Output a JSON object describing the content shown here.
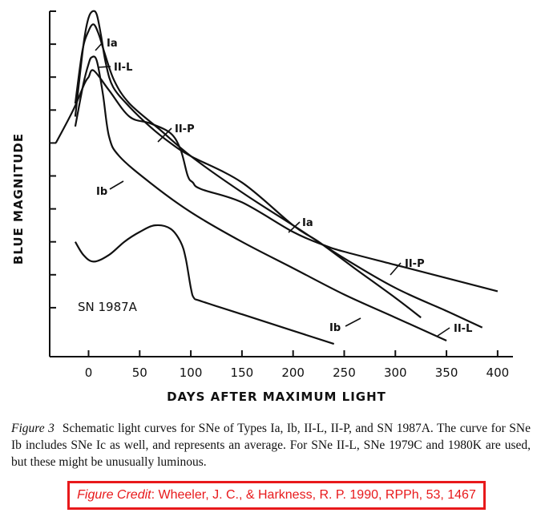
{
  "chart_data": {
    "type": "line",
    "xlabel": "DAYS AFTER MAXIMUM LIGHT",
    "ylabel": "BLUE MAGNITUDE",
    "xlim": [
      -38,
      415
    ],
    "ylim": [
      0,
      10
    ],
    "x_ticks": [
      0,
      50,
      100,
      150,
      200,
      250,
      300,
      350,
      400
    ],
    "x_tick_labels": [
      "0",
      "50",
      "100",
      "150",
      "200",
      "250",
      "300",
      "350",
      "400"
    ],
    "y_ticks": [
      1,
      2,
      3,
      4,
      5,
      6,
      7,
      8,
      9,
      10
    ],
    "y_tick_labels": [],
    "grid": false,
    "annotation": "SN 1987A",
    "series": [
      {
        "name": "Ia",
        "points": [
          [
            -13,
            6.8
          ],
          [
            -8,
            8.2
          ],
          [
            -4,
            9.2
          ],
          [
            0,
            9.8
          ],
          [
            4,
            10.0
          ],
          [
            8,
            9.9
          ],
          [
            12,
            9.3
          ],
          [
            17,
            8.4
          ],
          [
            24,
            7.7
          ],
          [
            40,
            7.1
          ],
          [
            60,
            6.5
          ],
          [
            80,
            6.0
          ],
          [
            100,
            5.6
          ],
          [
            150,
            4.8
          ],
          [
            200,
            3.5
          ],
          [
            225,
            3.0
          ],
          [
            260,
            2.2
          ],
          [
            300,
            1.3
          ],
          [
            325,
            0.7
          ]
        ]
      },
      {
        "name": "II-L",
        "points": [
          [
            -13,
            7.2
          ],
          [
            -6,
            8.8
          ],
          [
            0,
            9.4
          ],
          [
            5,
            9.6
          ],
          [
            10,
            9.3
          ],
          [
            15,
            8.8
          ],
          [
            25,
            7.9
          ],
          [
            40,
            7.2
          ],
          [
            70,
            6.4
          ],
          [
            100,
            5.6
          ],
          [
            150,
            4.5
          ],
          [
            200,
            3.5
          ],
          [
            250,
            2.5
          ],
          [
            300,
            1.6
          ],
          [
            350,
            0.9
          ],
          [
            385,
            0.4
          ]
        ]
      },
      {
        "name": "II-P",
        "points": [
          [
            -32,
            6.0
          ],
          [
            -15,
            7.0
          ],
          [
            -4,
            7.8
          ],
          [
            0,
            8.0
          ],
          [
            5,
            8.2
          ],
          [
            20,
            7.6
          ],
          [
            40,
            6.8
          ],
          [
            60,
            6.6
          ],
          [
            80,
            6.3
          ],
          [
            90,
            5.8
          ],
          [
            97,
            5.0
          ],
          [
            102,
            4.8
          ],
          [
            110,
            4.6
          ],
          [
            150,
            4.2
          ],
          [
            200,
            3.3
          ],
          [
            230,
            2.9
          ],
          [
            250,
            2.7
          ],
          [
            300,
            2.3
          ],
          [
            350,
            1.9
          ],
          [
            400,
            1.5
          ]
        ]
      },
      {
        "name": "Ib",
        "points": [
          [
            -13,
            6.5
          ],
          [
            -5,
            7.8
          ],
          [
            0,
            8.4
          ],
          [
            3,
            8.6
          ],
          [
            8,
            8.5
          ],
          [
            14,
            7.5
          ],
          [
            20,
            6.2
          ],
          [
            30,
            5.6
          ],
          [
            60,
            4.8
          ],
          [
            100,
            3.9
          ],
          [
            150,
            3.0
          ],
          [
            200,
            2.2
          ],
          [
            250,
            1.4
          ],
          [
            300,
            0.7
          ],
          [
            350,
            0.0
          ]
        ]
      },
      {
        "name": "SN 1987A",
        "points": [
          [
            -13,
            3.0
          ],
          [
            -5,
            2.6
          ],
          [
            5,
            2.4
          ],
          [
            20,
            2.6
          ],
          [
            35,
            3.0
          ],
          [
            50,
            3.3
          ],
          [
            65,
            3.5
          ],
          [
            80,
            3.4
          ],
          [
            90,
            3.0
          ],
          [
            95,
            2.5
          ],
          [
            100,
            1.6
          ],
          [
            103,
            1.3
          ],
          [
            110,
            1.2
          ],
          [
            150,
            0.8
          ],
          [
            200,
            0.3
          ],
          [
            240,
            -0.1
          ]
        ]
      }
    ]
  },
  "caption": {
    "figure_number": "Figure 3",
    "text": "Schematic light curves for SNe of Types Ia, Ib, II-L, II-P, and SN 1987A. The curve for SNe Ib includes SNe Ic as well, and represents an average.  For SNe II-L, SNe 1979C and 1980K are used, but these might be unusually luminous."
  },
  "credit": {
    "label": "Figure Credit",
    "text": ": Wheeler, J. C., & Harkness, R. P. 1990, RPPh, 53, 1467"
  },
  "colors": {
    "curve": "#111111",
    "credit": "#e8191b"
  }
}
